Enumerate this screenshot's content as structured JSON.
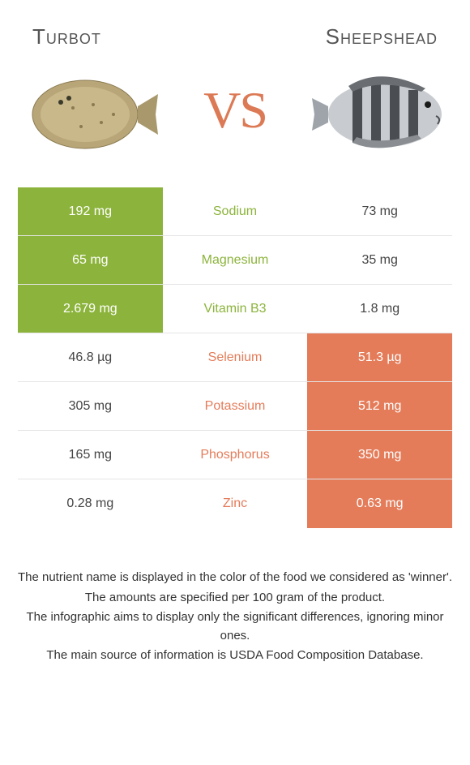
{
  "header": {
    "left_title": "Turbot",
    "right_title": "Sheepshead",
    "vs_v": "V",
    "vs_s": "S"
  },
  "colors": {
    "green": "#8CB43C",
    "orange": "#E47C5A"
  },
  "rows": [
    {
      "nutrient": "Sodium",
      "left": "192 mg",
      "right": "73 mg",
      "winner": "left"
    },
    {
      "nutrient": "Magnesium",
      "left": "65 mg",
      "right": "35 mg",
      "winner": "left"
    },
    {
      "nutrient": "Vitamin B3",
      "left": "2.679 mg",
      "right": "1.8 mg",
      "winner": "left"
    },
    {
      "nutrient": "Selenium",
      "left": "46.8 µg",
      "right": "51.3 µg",
      "winner": "right"
    },
    {
      "nutrient": "Potassium",
      "left": "305 mg",
      "right": "512 mg",
      "winner": "right"
    },
    {
      "nutrient": "Phosphorus",
      "left": "165 mg",
      "right": "350 mg",
      "winner": "right"
    },
    {
      "nutrient": "Zinc",
      "left": "0.28 mg",
      "right": "0.63 mg",
      "winner": "right"
    }
  ],
  "notes": {
    "line1": "The nutrient name is displayed in the color of the food we considered as 'winner'.",
    "line2": "The amounts are specified per 100 gram of the product.",
    "line3": "The infographic aims to display only the significant differences, ignoring minor ones.",
    "line4": "The main source of information is USDA Food Composition Database."
  }
}
